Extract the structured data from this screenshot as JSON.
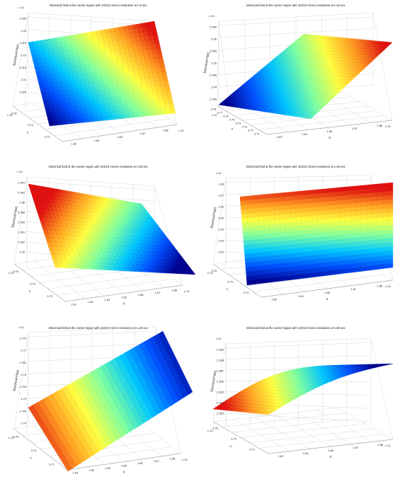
{
  "chart_data": [
    {
      "type": "surface",
      "title": "Electrical field at the center region with 10X10 micron resolution at t=0 sec",
      "zlabel": "Electrical Field",
      "xlabel": "",
      "ylabel": "Y",
      "exponent_label": "x 10",
      "z_ticks": [
        "1.035",
        "1.03",
        "1.025",
        "1.02",
        "1.015",
        "1.01",
        "1.005"
      ],
      "x_ticks": [
        "1.82",
        "1.84",
        "1.86",
        "1.87",
        "1.88"
      ],
      "y_ticks": [
        "3.76",
        "3.74",
        "3.72"
      ],
      "z_range_label": "1.005 – 1.035",
      "surface_color_range": "red (high) to blue (low)"
    },
    {
      "type": "surface",
      "title": "Electrical field at the center region with 10X10 micron resolution at t=10 sec",
      "zlabel": "Electrical Field",
      "xlabel": "X",
      "ylabel": "Y",
      "exponent_label": "x 10",
      "z_ticks": [
        "2.965",
        "2.96",
        "2.955",
        "2.95",
        "2.945",
        "2.94",
        "2.935"
      ],
      "x_ticks": [
        "1.82",
        "1.84",
        "1.86",
        "1.87",
        "1.88"
      ],
      "y_ticks": [
        "3.78",
        "3.77",
        "3.76",
        "3.75",
        "3.74",
        "3.73",
        "3.72",
        "3.71"
      ]
    },
    {
      "type": "surface",
      "title": "Electrical field at the center region with 10X10 micron resolution at t=20 sec",
      "zlabel": "Electrical Field",
      "xlabel": "X",
      "ylabel": "Y",
      "exponent_label": "x 10",
      "z_ticks": [
        "2.364",
        "2.362",
        "2.36",
        "2.358",
        "2.356",
        "2.354",
        "2.352",
        "2.35"
      ],
      "x_ticks": [
        "1.82",
        "1.83",
        "1.84",
        "1.85",
        "1.86",
        "1.87",
        "1.88"
      ],
      "y_ticks": [
        "3.76",
        "3.74",
        "3.72"
      ]
    },
    {
      "type": "surface",
      "title": "Electrical field at the center region with 10X10 micron resolution at t=40 sec",
      "zlabel": "Electrical Field",
      "xlabel": "X",
      "ylabel": "Y",
      "exponent_label": "x 10",
      "z_ticks": [
        "1.68",
        "1.67",
        "1.66",
        "1.65",
        "1.64",
        "1.63",
        "1.62"
      ],
      "x_ticks": [
        "1.82",
        "1.84",
        "1.86",
        "1.87",
        "1.88"
      ],
      "y_ticks": [
        "3.76",
        "3.74",
        "3.72"
      ]
    },
    {
      "type": "surface",
      "title": "Electrical field at the center region with 10X10 micron resolution at t=40 sec",
      "zlabel": "Electrical Field",
      "xlabel": "X",
      "ylabel": "Y",
      "exponent_label": "x 10",
      "z_ticks": [
        "1.775",
        "1.77",
        "1.765",
        "1.76",
        "1.755",
        "1.75",
        "1.745",
        "1.74"
      ],
      "x_ticks": [
        "1.82",
        "1.83",
        "1.84",
        "1.85",
        "1.86",
        "1.87",
        "1.88"
      ],
      "y_ticks": [
        "3.76",
        "3.74",
        "3.72"
      ]
    },
    {
      "type": "surface",
      "title": "Electrical field at the center region with 10X10 micron resolution at t=50 sec",
      "zlabel": "Electrical Field",
      "xlabel": "X",
      "ylabel": "Y",
      "exponent_label": "x 10",
      "z_ticks": [
        "2.369",
        "2.368",
        "2.367",
        "2.366",
        "2.365",
        "2.364",
        "2.363"
      ],
      "x_ticks": [
        "1.82",
        "1.84",
        "1.86",
        "1.87",
        "1.88"
      ],
      "y_ticks": [
        "3.76",
        "3.74",
        "3.72"
      ]
    }
  ],
  "colormap": [
    "#00008f",
    "#0050ff",
    "#00c8ff",
    "#7fffa0",
    "#ffff40",
    "#ff9a20",
    "#e01010"
  ]
}
